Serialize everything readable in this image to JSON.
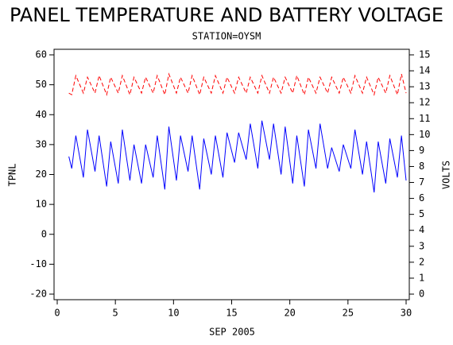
{
  "chart_data": {
    "type": "line",
    "title": "PANEL TEMPERATURE AND BATTERY VOLTAGE",
    "subtitle": "STATION=OYSM",
    "xlabel": "SEP 2005",
    "ylabel": "TPNL",
    "y2label": "VOLTS",
    "x": [
      1,
      1.25,
      1.6,
      2.25,
      2.6,
      3.25,
      3.6,
      4.25,
      4.6,
      5.25,
      5.6,
      6.25,
      6.6,
      7.25,
      7.6,
      8.25,
      8.6,
      9.25,
      9.6,
      10.25,
      10.6,
      11.25,
      11.6,
      12.25,
      12.6,
      13.25,
      13.6,
      14.25,
      14.6,
      15.25,
      15.6,
      16.25,
      16.6,
      17.25,
      17.6,
      18.25,
      18.6,
      19.25,
      19.6,
      20.25,
      20.6,
      21.25,
      21.6,
      22.25,
      22.6,
      23.25,
      23.6,
      24.25,
      24.6,
      25.25,
      25.6,
      26.25,
      26.6,
      27.25,
      27.6,
      28.25,
      28.6,
      29.25,
      29.6,
      30
    ],
    "series": [
      {
        "color": "#0000ff",
        "dash": false,
        "axis": "y",
        "values": [
          26,
          22,
          33,
          19,
          35,
          21,
          33,
          16,
          31,
          17,
          35,
          18,
          30,
          17,
          30,
          19,
          33,
          15,
          36,
          18,
          33,
          21,
          33,
          15,
          32,
          20,
          33,
          19,
          34,
          24,
          34,
          25,
          37,
          22,
          38,
          25,
          37,
          20,
          36,
          17,
          33,
          16,
          35,
          22,
          37,
          22,
          29,
          21,
          30,
          22,
          35,
          20,
          31,
          14,
          31,
          17,
          32,
          19,
          33,
          18
        ]
      },
      {
        "color": "#ff0000",
        "dash": true,
        "axis": "y2",
        "values": [
          12.6,
          12.5,
          13.7,
          12.6,
          13.6,
          12.6,
          13.7,
          12.5,
          13.6,
          12.6,
          13.7,
          12.5,
          13.6,
          12.6,
          13.6,
          12.6,
          13.7,
          12.5,
          13.8,
          12.6,
          13.6,
          12.6,
          13.7,
          12.5,
          13.6,
          12.6,
          13.7,
          12.6,
          13.6,
          12.6,
          13.6,
          12.6,
          13.6,
          12.6,
          13.7,
          12.6,
          13.6,
          12.6,
          13.6,
          12.6,
          13.7,
          12.5,
          13.6,
          12.6,
          13.6,
          12.6,
          13.6,
          12.6,
          13.6,
          12.6,
          13.7,
          12.6,
          13.6,
          12.5,
          13.6,
          12.6,
          13.7,
          12.5,
          13.8,
          12.6
        ]
      }
    ],
    "xlim": [
      0,
      30
    ],
    "xticks": [
      0,
      5,
      10,
      15,
      20,
      25,
      30
    ],
    "ylim": [
      -20,
      60
    ],
    "yticks": [
      -20,
      -10,
      0,
      10,
      20,
      30,
      40,
      50,
      60
    ],
    "y2lim": [
      0,
      15
    ],
    "y2ticks": [
      0,
      1,
      2,
      3,
      4,
      5,
      6,
      7,
      8,
      9,
      10,
      11,
      12,
      13,
      14,
      15
    ]
  }
}
